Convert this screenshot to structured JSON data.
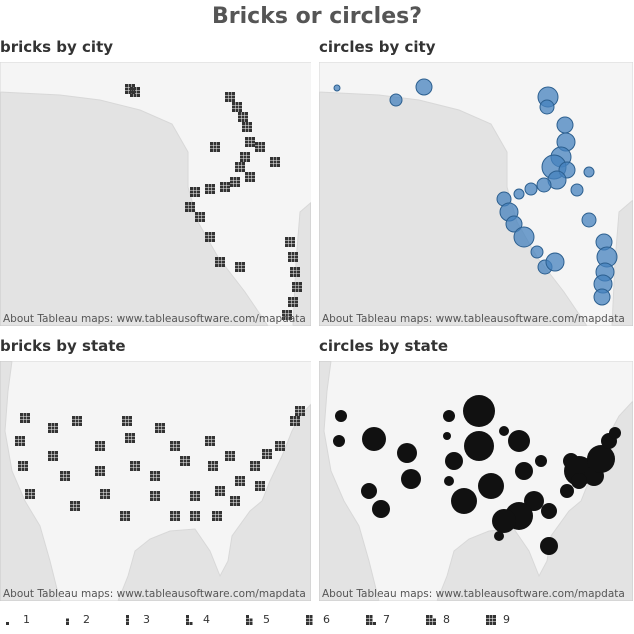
{
  "header": {
    "title": "Bricks or circles?"
  },
  "panels": [
    {
      "title": "bricks by city",
      "attribution": "About Tableau maps: www.tableausoftware.com/mapdata"
    },
    {
      "title": "circles by city",
      "attribution": "About Tableau maps: www.tableausoftware.com/mapdata"
    },
    {
      "title": "bricks by state",
      "attribution": "About Tableau maps: www.tableausoftware.com/mapdata"
    },
    {
      "title": "circles by state",
      "attribution": "About Tableau maps: www.tableausoftware.com/mapdata"
    }
  ],
  "legend": {
    "items": [
      1,
      2,
      3,
      4,
      5,
      6,
      7,
      8,
      9
    ]
  }
}
